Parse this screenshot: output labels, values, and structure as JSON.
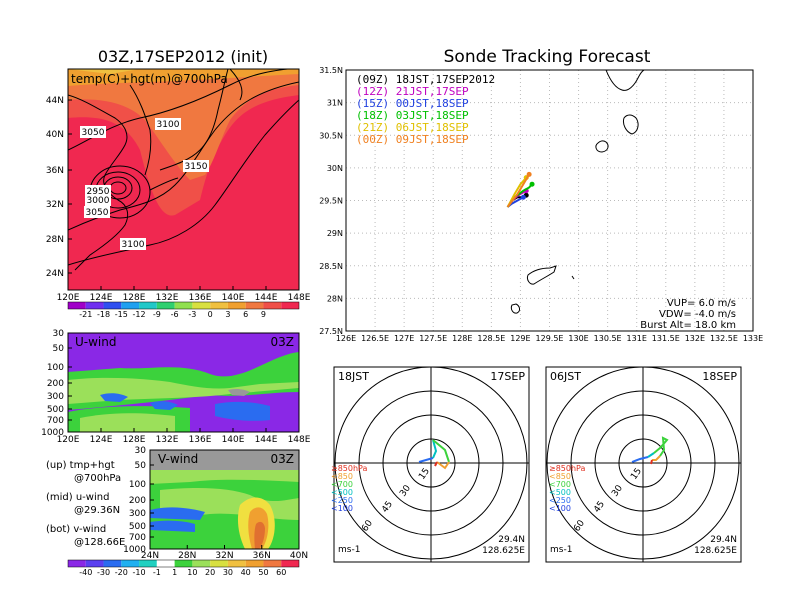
{
  "chart_data": [
    {
      "type": "heatmap",
      "title": "03Z,17SEP2012 (init)",
      "subtitle": "temp(C)+hgt(m)@700hPa",
      "x_ticks": [
        "120E",
        "124E",
        "128E",
        "132E",
        "136E",
        "140E",
        "144E",
        "148E"
      ],
      "y_ticks": [
        "24N",
        "28N",
        "32N",
        "36N",
        "40N",
        "44N"
      ],
      "contour_labels": [
        "3050",
        "3100",
        "3150",
        "2950",
        "3000",
        "3050",
        "3100"
      ],
      "colorbar_labels": [
        "-21",
        "-18",
        "-15",
        "-12",
        "-9",
        "-6",
        "-3",
        "0",
        "3",
        "6",
        "9"
      ]
    },
    {
      "type": "heatmap",
      "label": "U-wind",
      "time": "03Z",
      "y_ticks": [
        "30",
        "50",
        "100",
        "200",
        "300",
        "500",
        "700",
        "1000"
      ],
      "x_ticks": [
        "120E",
        "124E",
        "128E",
        "132E",
        "136E",
        "140E",
        "144E",
        "148E"
      ]
    },
    {
      "type": "heatmap",
      "label": "V-wind",
      "time": "03Z",
      "y_ticks": [
        "30",
        "50",
        "100",
        "200",
        "300",
        "500",
        "700",
        "1000"
      ],
      "x_ticks": [
        "24N",
        "28N",
        "32N",
        "36N",
        "40N"
      ],
      "colorbar_labels": [
        "-40",
        "-30",
        "-20",
        "-10",
        "-1",
        "1",
        "10",
        "20",
        "30",
        "40",
        "50",
        "60"
      ]
    },
    {
      "type": "line",
      "title": "Sonde Tracking Forecast",
      "x_ticks": [
        "126E",
        "126.5E",
        "127E",
        "127.5E",
        "128E",
        "128.5E",
        "129E",
        "129.5E",
        "130E",
        "130.5E",
        "131E",
        "131.5E",
        "132E",
        "132.5E",
        "133E"
      ],
      "y_ticks": [
        "27.5N",
        "28N",
        "28.5N",
        "29N",
        "29.5N",
        "30N",
        "30.5N",
        "31N",
        "31.5N"
      ],
      "xlim": [
        126,
        133
      ],
      "ylim": [
        27.5,
        31.5
      ],
      "grid": true,
      "legend": [
        {
          "name": "(09Z)  18JST,17SEP2012",
          "color": "#000000"
        },
        {
          "name": "(12Z)  21JST,17SEP",
          "color": "#c000c0"
        },
        {
          "name": "(15Z)  00JST,18SEP",
          "color": "#2040e0"
        },
        {
          "name": "(18Z)  03JST,18SEP",
          "color": "#00c000"
        },
        {
          "name": "(21Z)  06JST,18SEP",
          "color": "#e0c000"
        },
        {
          "name": "(00Z)  09JST,18SEP",
          "color": "#f08020"
        }
      ],
      "series": [
        {
          "color": "#000000",
          "x": [
            128.78,
            128.85,
            128.95,
            129.05,
            129.1
          ],
          "y": [
            29.4,
            29.5,
            29.55,
            29.55,
            29.58
          ]
        },
        {
          "color": "#c000c0",
          "x": [
            128.78,
            128.88,
            129.0,
            129.1
          ],
          "y": [
            29.4,
            29.52,
            29.6,
            29.65
          ]
        },
        {
          "color": "#2040e0",
          "x": [
            128.78,
            128.85,
            128.95,
            129.05
          ],
          "y": [
            29.4,
            29.45,
            29.5,
            29.55
          ]
        },
        {
          "color": "#00c000",
          "x": [
            128.78,
            128.9,
            129.05,
            129.15,
            129.2
          ],
          "y": [
            29.4,
            29.55,
            29.65,
            29.7,
            29.75
          ]
        },
        {
          "color": "#e0c000",
          "x": [
            128.78,
            128.9,
            129.0,
            129.1
          ],
          "y": [
            29.4,
            29.6,
            29.75,
            29.85
          ]
        },
        {
          "color": "#f08020",
          "x": [
            128.78,
            128.95,
            129.05,
            129.15
          ],
          "y": [
            29.4,
            29.6,
            29.75,
            29.9
          ]
        }
      ],
      "annotations": [
        "VUP=  6.0  m/s",
        "VDW= -4.0  m/s",
        "Burst Alt=  18.0  km"
      ]
    },
    {
      "type": "scatter",
      "label_left": "18JST",
      "label_right": "17SEP",
      "ring_labels": [
        "15",
        "30",
        "45",
        "60"
      ],
      "level_legend": [
        "≥850hPa",
        "<850",
        "<700",
        "<500",
        "<250",
        "<100"
      ],
      "unit": "ms-1",
      "lat": "29.4N",
      "lon": "128.625E"
    },
    {
      "type": "scatter",
      "label_left": "06JST",
      "label_right": "18SEP",
      "ring_labels": [
        "15",
        "30",
        "45",
        "60"
      ],
      "level_legend": [
        "≥850hPa",
        "<850",
        "<700",
        "<500",
        "<250",
        "<100"
      ],
      "unit": "ms-1",
      "lat": "29.4N",
      "lon": "128.625E"
    }
  ],
  "side_notes": [
    {
      "line1": "(up) tmp+hgt",
      "line2": "@700hPa"
    },
    {
      "line1": "(mid) u-wind",
      "line2": "@29.36N"
    },
    {
      "line1": "(bot) v-wind",
      "line2": "@128.66E"
    }
  ],
  "colors": {
    "temp_red": "#f02850",
    "temp_orange": "#f07840",
    "temp_yellow": "#f0a030",
    "wind_purple": "#8a28e6",
    "wind_blue": "#2a6cf0",
    "wind_green": "#3cd23c",
    "wind_lightgreen": "#9be05a"
  }
}
